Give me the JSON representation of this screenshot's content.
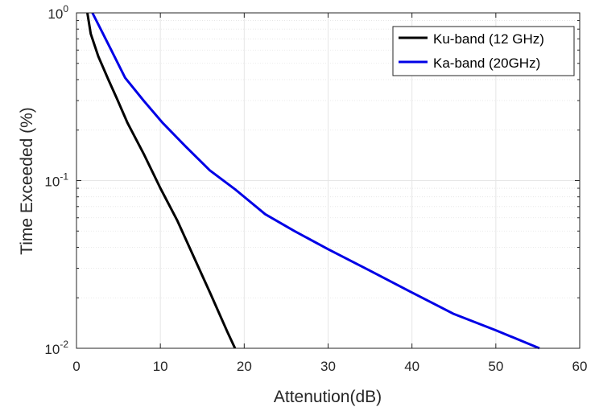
{
  "chart_data": {
    "type": "line",
    "title": "",
    "xlabel": "Attenution(dB)",
    "ylabel": "Time Exceeded (%)",
    "xlim": [
      0,
      60
    ],
    "ylim": [
      0.01,
      1
    ],
    "yscale": "log",
    "grid": true,
    "minor_grid": true,
    "legend_position": "top-right",
    "xticks": [
      0,
      10,
      20,
      30,
      40,
      50,
      60
    ],
    "xtick_labels": [
      "0",
      "10",
      "20",
      "30",
      "40",
      "50",
      "60"
    ],
    "yticks": [
      {
        "value": 1,
        "base": "10",
        "exp": "0"
      },
      {
        "value": 0.1,
        "base": "10",
        "exp": "-1"
      },
      {
        "value": 0.01,
        "base": "10",
        "exp": "-2"
      }
    ],
    "series": [
      {
        "name": "Ku-band (12 GHz)",
        "color": "#000000",
        "x": [
          1.3,
          1.7,
          2.6,
          3.8,
          4.8,
          6.1,
          8.0,
          10.0,
          12.0,
          14.0,
          16.0,
          18.0,
          18.9
        ],
        "y": [
          1.0,
          0.75,
          0.55,
          0.4,
          0.31,
          0.22,
          0.145,
          0.09,
          0.058,
          0.035,
          0.021,
          0.0125,
          0.01
        ]
      },
      {
        "name": "Ka-band (20GHz)",
        "color": "#0000e6",
        "x": [
          1.9,
          4.0,
          5.8,
          8.0,
          10.3,
          13.0,
          15.9,
          19.0,
          22.5,
          26.0,
          30.0,
          35.0,
          40.0,
          45.0,
          50.0,
          55.2
        ],
        "y": [
          1.0,
          0.62,
          0.41,
          0.3,
          0.22,
          0.16,
          0.115,
          0.088,
          0.063,
          0.05,
          0.039,
          0.029,
          0.0215,
          0.016,
          0.0128,
          0.01
        ]
      }
    ]
  }
}
